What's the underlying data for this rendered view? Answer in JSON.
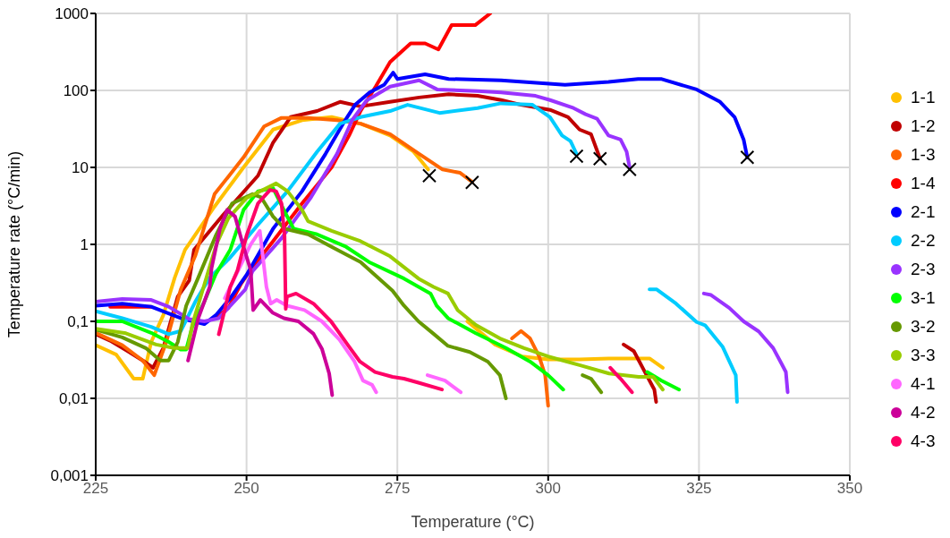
{
  "chart_data": {
    "type": "line",
    "xlabel": "Temperature (°C)",
    "ylabel": "Temperature rate (°C/min)",
    "xlim": [
      225,
      350
    ],
    "xticks": [
      225,
      250,
      275,
      300,
      325,
      350
    ],
    "ylim": [
      0.001,
      1000
    ],
    "yticks": [
      {
        "value": 0.001,
        "label": "0,001"
      },
      {
        "value": 0.01,
        "label": "0,01"
      },
      {
        "value": 0.1,
        "label": "0,1"
      },
      1,
      10,
      100,
      1000
    ],
    "log": "y",
    "grid": true,
    "legend": "right",
    "series": [
      {
        "name": "1-1",
        "color": "#ffc000",
        "x": [
          225,
          228.4,
          231.3,
          232.8,
          234.2,
          236.2,
          238.1,
          239.8,
          244.7,
          249.5,
          254.4,
          259.2,
          264.1,
          268.9,
          273.8,
          277.7,
          280.1,
          283,
          286.6,
          291.2,
          295.7,
          300,
          305.2,
          310,
          316.8,
          319
        ],
        "values": [
          0.049,
          0.037,
          0.018,
          0.018,
          0.054,
          0.12,
          0.37,
          0.85,
          3.1,
          10,
          31,
          41,
          45,
          37,
          26,
          16,
          9.4,
          null,
          0.1,
          0.05,
          0.035,
          0.032,
          0.032,
          0.033,
          0.033,
          0.025
        ]
      },
      {
        "name": "1-2",
        "color": "#c00000",
        "x": [
          225,
          227.4,
          230.3,
          232.8,
          234.5,
          236.2,
          238.6,
          240.5,
          241.3,
          246.1,
          251.9,
          254.4,
          257.3,
          261.7,
          265.5,
          268.9,
          273.8,
          278.6,
          283.5,
          288.3,
          292.2,
          295.5,
          300.3,
          303.3,
          305.2,
          307.1,
          308.6,
          310,
          312.5,
          314.2,
          315.9,
          317.6,
          317.9
        ],
        "values": [
          0.068,
          0.056,
          0.041,
          0.031,
          0.025,
          0.045,
          0.21,
          0.34,
          0.85,
          2.4,
          7.8,
          21,
          45,
          54,
          71,
          62,
          71,
          81,
          89,
          85,
          75,
          65,
          56,
          45,
          31,
          27,
          13,
          null,
          0.05,
          0.041,
          0.023,
          0.013,
          0.009
        ]
      },
      {
        "name": "1-3",
        "color": "#ff6600",
        "x": [
          225,
          229.4,
          232.8,
          234.7,
          236.7,
          239.1,
          241.5,
          244.7,
          249.5,
          252.9,
          255.8,
          260.2,
          265,
          268.9,
          273.8,
          278.6,
          282.5,
          285.4,
          287.4,
          290,
          294,
          295.5,
          297,
          298.5,
          299.5,
          300
        ],
        "values": [
          0.071,
          0.049,
          0.031,
          0.02,
          0.054,
          0.26,
          0.71,
          4.5,
          13.5,
          34,
          44,
          44,
          41,
          37,
          27,
          15,
          9.4,
          8.5,
          6.5,
          null,
          0.06,
          0.075,
          0.06,
          0.035,
          0.02,
          0.008
        ]
      },
      {
        "name": "1-4",
        "color": "#ff0000",
        "x": [
          227.4,
          234.2,
          239.1,
          243,
          244.9,
          247,
          249,
          250.5,
          254.4,
          259.2,
          264.1,
          267,
          268.9,
          271.4,
          273.8,
          277.2,
          279.6,
          281.8,
          284,
          287.9,
          290.4
        ],
        "values": [
          0.155,
          0.155,
          null,
          null,
          0.11,
          0.15,
          0.3,
          0.45,
          1.1,
          3.4,
          10,
          26,
          54,
          112,
          234,
          408,
          408,
          340,
          705,
          705,
          1000
        ]
      },
      {
        "name": "2-1",
        "color": "#0000ff",
        "x": [
          225,
          229.4,
          234.2,
          239.1,
          243,
          244.9,
          247.3,
          250,
          254.4,
          259.2,
          263.1,
          266,
          268,
          270.4,
          272.8,
          274.3,
          275,
          279.6,
          283.5,
          292.2,
          302.8,
          310,
          314.9,
          318.7,
          324.6,
          328.5,
          330.9,
          332.4,
          333
        ],
        "values": [
          0.16,
          0.17,
          0.155,
          0.11,
          0.092,
          0.12,
          0.2,
          0.4,
          1.6,
          4.9,
          15,
          37,
          65,
          94,
          118,
          170,
          141,
          162,
          141,
          135,
          118,
          129,
          141,
          141,
          103,
          71,
          45,
          23,
          13.5
        ]
      },
      {
        "name": "2-2",
        "color": "#00ccff",
        "x": [
          225,
          229.4,
          234.2,
          237.1,
          239.1,
          241.5,
          243.9,
          247.1,
          251.9,
          256.8,
          261.7,
          265.5,
          268.9,
          273.8,
          276.7,
          282,
          288.3,
          292.2,
          297.4,
          300.3,
          302.3,
          303.7,
          304.7,
          310,
          316.8,
          318,
          321.2,
          324.6,
          326,
          328.9,
          331.1,
          331.3
        ],
        "values": [
          0.135,
          0.11,
          0.085,
          0.068,
          0.075,
          0.18,
          0.37,
          0.65,
          1.8,
          4.9,
          16,
          37,
          45,
          54,
          65,
          51,
          59,
          68,
          65,
          45,
          26,
          22,
          15,
          null,
          0.26,
          0.26,
          0.17,
          0.098,
          0.089,
          0.047,
          0.02,
          0.009
        ]
      },
      {
        "name": "2-3",
        "color": "#9933ff",
        "x": [
          225,
          229.4,
          234.2,
          237.1,
          240.5,
          243,
          245.4,
          249.8,
          251,
          255.8,
          260.7,
          265,
          267.5,
          269.9,
          273.8,
          278.6,
          281.6,
          288.3,
          292.2,
          297.9,
          300.3,
          304.2,
          306.2,
          308.1,
          310,
          312,
          313,
          313.5,
          320,
          325.8,
          327,
          330,
          332.4,
          334.9,
          337.3,
          338.7,
          339.4,
          339.7
        ],
        "values": [
          0.18,
          0.195,
          0.19,
          0.155,
          0.107,
          0.1,
          0.11,
          0.26,
          0.45,
          1.2,
          4.1,
          15,
          41,
          74,
          112,
          135,
          103,
          98,
          94,
          85,
          75,
          59,
          49,
          43,
          26,
          23,
          16,
          10,
          null,
          0.23,
          0.22,
          0.15,
          0.1,
          0.074,
          0.045,
          0.028,
          0.022,
          0.012
        ]
      },
      {
        "name": "3-1",
        "color": "#00ff00",
        "x": [
          225,
          229.4,
          234.2,
          237.1,
          239.1,
          240,
          241,
          243,
          244.9,
          247.3,
          249.5,
          251.9,
          254.4,
          256.5,
          257.8,
          261.7,
          266.5,
          270.3,
          276.1,
          280.5,
          281.5,
          283.4,
          288,
          293,
          297,
          300,
          302.5,
          310,
          316.4,
          318.8,
          321.7
        ],
        "values": [
          0.1,
          0.1,
          0.071,
          0.054,
          0.043,
          0.043,
          0.085,
          0.18,
          0.41,
          0.85,
          2.8,
          4.9,
          5.4,
          2.5,
          1.6,
          1.35,
          0.93,
          0.59,
          0.36,
          0.23,
          0.16,
          0.11,
          0.07,
          0.045,
          0.03,
          0.02,
          0.013,
          null,
          0.022,
          0.017,
          0.013
        ]
      },
      {
        "name": "3-2",
        "color": "#669900",
        "x": [
          225,
          229.4,
          233.3,
          235.7,
          237.1,
          238.6,
          240,
          242,
          244.9,
          247.6,
          251,
          252.4,
          254.4,
          256.3,
          260.2,
          264.1,
          268.9,
          271.3,
          274.2,
          276.1,
          278.5,
          281,
          283.4,
          287,
          290,
          292,
          293,
          300,
          305.7,
          307.1,
          308.8
        ],
        "values": [
          0.078,
          0.062,
          0.045,
          0.031,
          0.031,
          0.054,
          0.16,
          0.37,
          1.3,
          3.4,
          4.5,
          4.1,
          2.3,
          1.6,
          1.35,
          0.93,
          0.59,
          0.4,
          0.25,
          0.16,
          0.1,
          0.069,
          0.048,
          0.04,
          0.03,
          0.02,
          0.01,
          null,
          0.02,
          0.018,
          0.012
        ]
      },
      {
        "name": "3-3",
        "color": "#99cc00",
        "x": [
          225,
          230,
          235,
          238,
          240.3,
          241,
          243,
          245,
          247,
          250,
          254.9,
          256.8,
          259.2,
          260.2,
          264.1,
          268.9,
          273.8,
          278.5,
          281,
          283.4,
          285,
          288,
          292,
          296,
          300,
          305.2,
          310.1,
          315,
          317.4,
          319
        ],
        "values": [
          0.08,
          0.07,
          0.05,
          0.045,
          0.045,
          0.09,
          0.3,
          1,
          2.2,
          4,
          6.2,
          4.9,
          2.8,
          2,
          1.5,
          1.1,
          0.7,
          0.36,
          0.28,
          0.23,
          0.14,
          0.09,
          0.06,
          0.045,
          0.035,
          0.027,
          0.021,
          0.019,
          0.019,
          0.013
        ]
      },
      {
        "name": "4-1",
        "color": "#ff66ff",
        "x": [
          246.4,
          250.7,
          252.2,
          253.3,
          254,
          255,
          256.7,
          259.6,
          262.5,
          265.4,
          267.9,
          269.3,
          270.8,
          271.5,
          275,
          280,
          282.9,
          285.5
        ],
        "values": [
          0.2,
          1,
          1.5,
          0.28,
          0.17,
          0.19,
          0.16,
          0.14,
          0.1,
          0.058,
          0.03,
          0.017,
          0.015,
          0.012,
          null,
          0.02,
          0.017,
          0.012
        ]
      },
      {
        "name": "4-2",
        "color": "#cc0099",
        "x": [
          240.3,
          242,
          243.9,
          244.2,
          245.6,
          246.8,
          248.1,
          249.5,
          250.7,
          251.1,
          252.3,
          254.3,
          256.2,
          258.6,
          261.1,
          262.5,
          263.7,
          264.2
        ],
        "values": [
          0.031,
          0.11,
          0.28,
          0.49,
          1.6,
          2.8,
          2.3,
          0.93,
          0.46,
          0.14,
          0.19,
          0.13,
          0.11,
          0.1,
          0.069,
          0.044,
          0.021,
          0.011
        ]
      },
      {
        "name": "4-3",
        "color": "#ff0066",
        "x": [
          245.4,
          247.3,
          248.5,
          250,
          251.9,
          253.9,
          254.9,
          255.8,
          256.3,
          256.5,
          256.7,
          258.2,
          261.1,
          264,
          266.9,
          268.8,
          271.3,
          274.2,
          276.1,
          278.5,
          282.4,
          300,
          310.3,
          312,
          313.9
        ],
        "values": [
          0.068,
          0.28,
          0.46,
          1.3,
          3.4,
          5.1,
          4.9,
          3.4,
          1.3,
          0.145,
          0.21,
          0.23,
          0.17,
          0.1,
          0.048,
          0.03,
          0.022,
          0.019,
          0.018,
          0.016,
          0.013,
          null,
          0.025,
          0.018,
          0.012
        ]
      },
      {
        "type": "scatter",
        "marker": "cross",
        "color": "#000000",
        "x": [
          280.3,
          287.4,
          304.7,
          308.6,
          313.5,
          333
        ],
        "values": [
          7.8,
          6.4,
          14,
          13,
          9.4,
          13.5
        ]
      }
    ]
  }
}
